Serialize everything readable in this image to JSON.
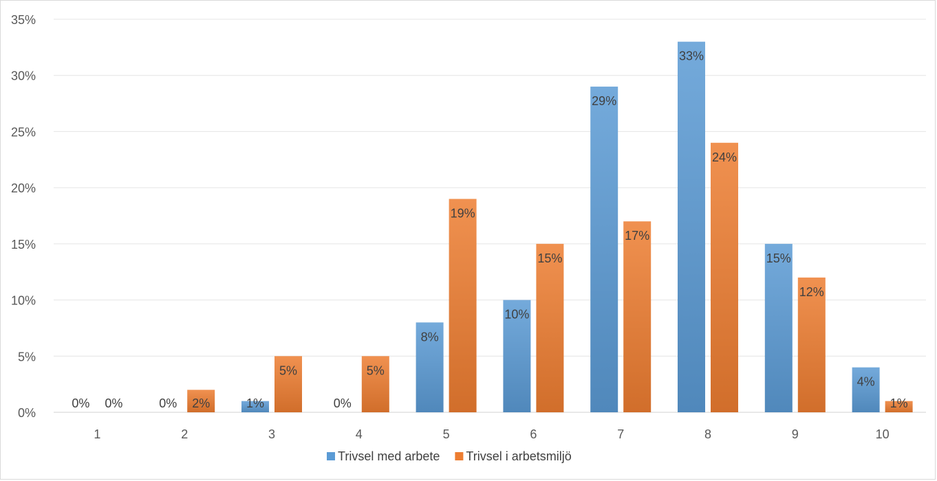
{
  "chart_data": {
    "type": "bar",
    "title": "",
    "xlabel": "",
    "ylabel": "",
    "categories": [
      "1",
      "2",
      "3",
      "4",
      "5",
      "6",
      "7",
      "8",
      "9",
      "10"
    ],
    "series": [
      {
        "name": "Trivsel med arbete",
        "color": "#5b9bd5",
        "values": [
          0,
          0,
          1,
          0,
          8,
          10,
          29,
          33,
          15,
          4
        ],
        "labels": [
          "0%",
          "0%",
          "1%",
          "0%",
          "8%",
          "10%",
          "29%",
          "33%",
          "15%",
          "4%"
        ]
      },
      {
        "name": "Trivsel i arbetsmiljö",
        "color": "#ed7d31",
        "values": [
          0,
          2,
          5,
          5,
          19,
          15,
          17,
          24,
          12,
          1
        ],
        "labels": [
          "0%",
          "2%",
          "5%",
          "5%",
          "19%",
          "15%",
          "17%",
          "24%",
          "12%",
          "1%"
        ]
      }
    ],
    "ylim": [
      0,
      35
    ],
    "yticks": [
      0,
      5,
      10,
      15,
      20,
      25,
      30,
      35
    ],
    "ytick_labels": [
      "0%",
      "5%",
      "10%",
      "15%",
      "20%",
      "25%",
      "30%",
      "35%"
    ],
    "grid": true,
    "legend_position": "bottom"
  }
}
